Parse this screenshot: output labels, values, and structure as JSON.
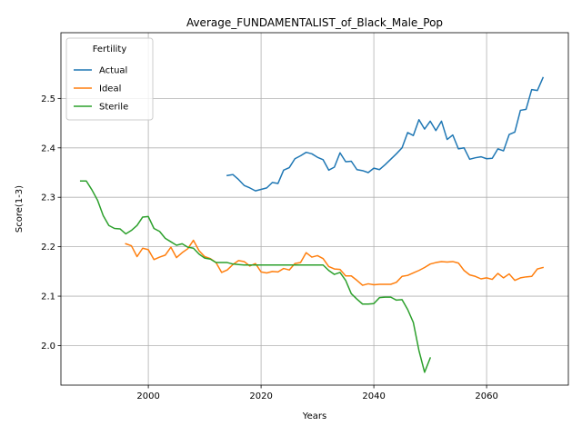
{
  "chart_data": {
    "type": "line",
    "title": "Average_FUNDAMENTALIST_of_Black_Male_Pop",
    "xlabel": "Years",
    "ylabel": "Score(1-3)",
    "xlim": [
      1984.5,
      2074.5
    ],
    "ylim": [
      1.92,
      2.633
    ],
    "xticks": [
      2000,
      2020,
      2040,
      2060
    ],
    "yticks": [
      2.0,
      2.1,
      2.2,
      2.3,
      2.4,
      2.5
    ],
    "grid": true,
    "legend": {
      "title": "Fertility",
      "placement": "top-left"
    },
    "series": [
      {
        "name": "Actual",
        "color": "#1f77b4",
        "x": [
          2014,
          2015,
          2016,
          2017,
          2018,
          2019,
          2020,
          2021,
          2022,
          2023,
          2024,
          2025,
          2026,
          2027,
          2028,
          2029,
          2030,
          2031,
          2032,
          2033,
          2034,
          2035,
          2036,
          2037,
          2038,
          2039,
          2040,
          2041,
          2042,
          2043,
          2044,
          2045,
          2046,
          2047,
          2048,
          2049,
          2050,
          2051,
          2052,
          2053,
          2054,
          2055,
          2056,
          2057,
          2058,
          2059,
          2060,
          2061,
          2062,
          2063,
          2064,
          2065,
          2066,
          2067,
          2068,
          2069,
          2070
        ],
        "values": [
          2.344,
          2.346,
          2.336,
          2.324,
          2.319,
          2.313,
          2.316,
          2.319,
          2.33,
          2.328,
          2.355,
          2.36,
          2.378,
          2.384,
          2.391,
          2.388,
          2.381,
          2.376,
          2.355,
          2.361,
          2.39,
          2.372,
          2.373,
          2.356,
          2.354,
          2.35,
          2.359,
          2.356,
          2.366,
          2.377,
          2.388,
          2.4,
          2.431,
          2.425,
          2.457,
          2.438,
          2.454,
          2.435,
          2.454,
          2.417,
          2.426,
          2.398,
          2.4,
          2.377,
          2.38,
          2.382,
          2.378,
          2.379,
          2.398,
          2.394,
          2.427,
          2.432,
          2.476,
          2.478,
          2.518,
          2.516,
          2.542
        ]
      },
      {
        "name": "Ideal",
        "color": "#ff7f0e",
        "x": [
          1996,
          1997,
          1998,
          1999,
          2000,
          2001,
          2002,
          2003,
          2004,
          2005,
          2006,
          2007,
          2008,
          2009,
          2010,
          2011,
          2012,
          2013,
          2014,
          2015,
          2016,
          2017,
          2018,
          2019,
          2020,
          2021,
          2022,
          2023,
          2024,
          2025,
          2026,
          2027,
          2028,
          2029,
          2030,
          2031,
          2032,
          2033,
          2034,
          2035,
          2036,
          2037,
          2038,
          2039,
          2040,
          2041,
          2042,
          2043,
          2044,
          2045,
          2046,
          2047,
          2048,
          2049,
          2050,
          2051,
          2052,
          2053,
          2054,
          2055,
          2056,
          2057,
          2058,
          2059,
          2060,
          2061,
          2062,
          2063,
          2064,
          2065,
          2066,
          2067,
          2068,
          2069,
          2070
        ],
        "values": [
          2.206,
          2.202,
          2.18,
          2.197,
          2.194,
          2.174,
          2.179,
          2.183,
          2.199,
          2.178,
          2.188,
          2.196,
          2.213,
          2.192,
          2.18,
          2.176,
          2.168,
          2.148,
          2.153,
          2.164,
          2.172,
          2.17,
          2.161,
          2.166,
          2.149,
          2.147,
          2.15,
          2.149,
          2.156,
          2.153,
          2.166,
          2.168,
          2.188,
          2.179,
          2.182,
          2.176,
          2.16,
          2.155,
          2.154,
          2.141,
          2.141,
          2.132,
          2.122,
          2.125,
          2.123,
          2.124,
          2.124,
          2.124,
          2.128,
          2.14,
          2.142,
          2.147,
          2.152,
          2.158,
          2.165,
          2.168,
          2.17,
          2.169,
          2.17,
          2.167,
          2.152,
          2.143,
          2.14,
          2.135,
          2.137,
          2.134,
          2.146,
          2.137,
          2.145,
          2.132,
          2.137,
          2.139,
          2.14,
          2.155,
          2.158
        ]
      },
      {
        "name": "Sterile",
        "color": "#2ca02c",
        "x": [
          1988,
          1989,
          1990,
          1991,
          1992,
          1993,
          1994,
          1995,
          1996,
          1997,
          1998,
          1999,
          2000,
          2001,
          2002,
          2003,
          2004,
          2005,
          2006,
          2007,
          2008,
          2009,
          2010,
          2011,
          2012,
          2013,
          2014,
          2015,
          2016,
          2017,
          2018,
          2019,
          2020,
          2021,
          2022,
          2023,
          2024,
          2025,
          2026,
          2027,
          2028,
          2029,
          2030,
          2031,
          2032,
          2033,
          2034,
          2035,
          2036,
          2037,
          2038,
          2039,
          2040,
          2041,
          2042,
          2043,
          2044,
          2045,
          2046,
          2047,
          2048,
          2049,
          2050
        ],
        "values": [
          2.333,
          2.333,
          2.315,
          2.294,
          2.263,
          2.243,
          2.237,
          2.236,
          2.226,
          2.233,
          2.243,
          2.26,
          2.261,
          2.237,
          2.231,
          2.217,
          2.21,
          2.203,
          2.206,
          2.199,
          2.197,
          2.185,
          2.177,
          2.175,
          2.168,
          2.168,
          2.168,
          2.165,
          2.164,
          2.163,
          2.163,
          2.163,
          2.163,
          2.163,
          2.163,
          2.163,
          2.163,
          2.163,
          2.163,
          2.163,
          2.163,
          2.163,
          2.163,
          2.163,
          2.152,
          2.144,
          2.148,
          2.132,
          2.105,
          2.094,
          2.084,
          2.084,
          2.085,
          2.097,
          2.098,
          2.098,
          2.092,
          2.093,
          2.073,
          2.047,
          1.99,
          1.946,
          1.975
        ]
      }
    ]
  }
}
